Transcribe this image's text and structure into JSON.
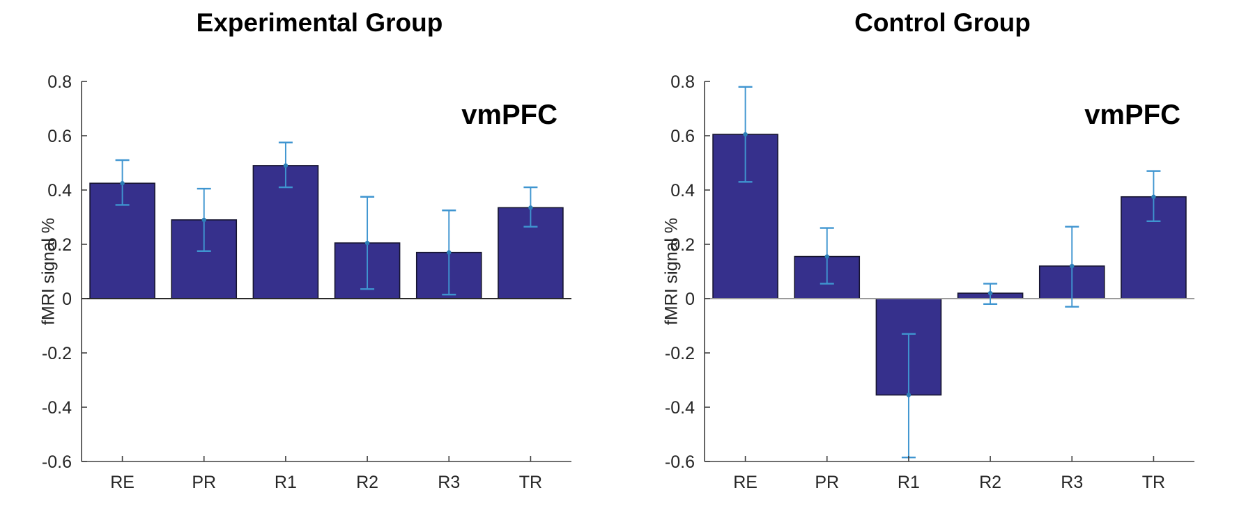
{
  "page": {
    "background_color": "#ffffff",
    "text_color": "#262626",
    "axis_color": "#3f3f3f"
  },
  "chart_data": [
    {
      "type": "bar",
      "title": "Experimental Group",
      "annotation": "vmPFC",
      "xlabel": "",
      "ylabel": "fMRI signal %",
      "categories": [
        "RE",
        "PR",
        "R1",
        "R2",
        "R3",
        "TR"
      ],
      "values": [
        0.425,
        0.29,
        0.49,
        0.205,
        0.17,
        0.335
      ],
      "error_low": [
        0.345,
        0.175,
        0.41,
        0.035,
        0.015,
        0.265
      ],
      "error_high": [
        0.51,
        0.405,
        0.575,
        0.375,
        0.325,
        0.41
      ],
      "ylim": [
        -0.6,
        0.8
      ],
      "yticks": [
        0.8,
        0.6,
        0.4,
        0.2,
        0,
        -0.2,
        -0.4,
        -0.6
      ],
      "ytick_labels": [
        "0.8",
        "0.6",
        "0.4",
        "0.2",
        "0",
        "-0.2",
        "-0.4",
        "-0.6"
      ],
      "grid": false,
      "legend": null,
      "bar_color": "#36308c",
      "bar_edge_color": "#16142f",
      "error_color": "#3f95d0",
      "error_marker_color": "#2d7fb8",
      "zero_line_color": "#2a2a2a"
    },
    {
      "type": "bar",
      "title": "Control Group",
      "annotation": "vmPFC",
      "xlabel": "",
      "ylabel": "fMRI signal %",
      "categories": [
        "RE",
        "PR",
        "R1",
        "R2",
        "R3",
        "TR"
      ],
      "values": [
        0.605,
        0.155,
        -0.355,
        0.02,
        0.12,
        0.375
      ],
      "error_low": [
        0.43,
        0.055,
        -0.585,
        -0.02,
        -0.03,
        0.285
      ],
      "error_high": [
        0.78,
        0.26,
        -0.13,
        0.055,
        0.265,
        0.47
      ],
      "ylim": [
        -0.6,
        0.8
      ],
      "yticks": [
        0.8,
        0.6,
        0.4,
        0.2,
        0,
        -0.2,
        -0.4,
        -0.6
      ],
      "ytick_labels": [
        "0.8",
        "0.6",
        "0.4",
        "0.2",
        "0",
        "-0.2",
        "-0.4",
        "-0.6"
      ],
      "grid": false,
      "legend": null,
      "bar_color": "#36308c",
      "bar_edge_color": "#16142f",
      "error_color": "#3f95d0",
      "error_marker_color": "#2d7fb8",
      "zero_line_color": "#9b9b9b"
    }
  ]
}
